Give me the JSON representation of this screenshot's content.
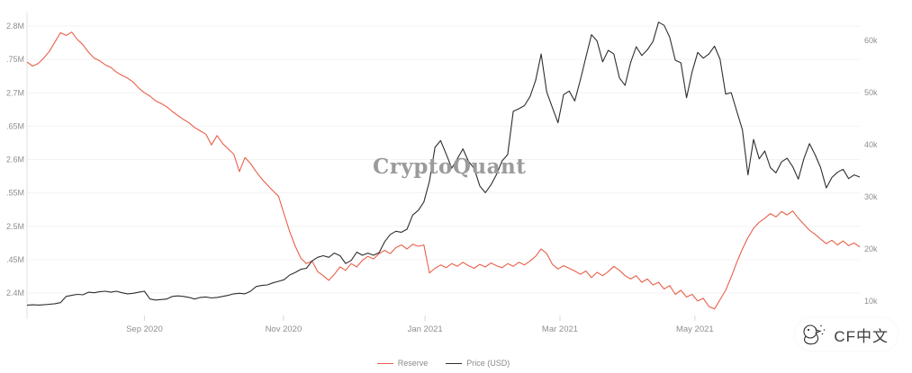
{
  "watermark": "CryptoQuant",
  "badge": {
    "text": "CF中文",
    "icon": "bird-sketch-icon"
  },
  "chart_data": {
    "type": "line",
    "title": "",
    "grid": "horizontal-light",
    "legend_position": "bottom-center",
    "x_axis": {
      "tick_labels": [
        "Sep 2020",
        "Nov 2020",
        "Jan 2021",
        "Mar 2021",
        "May 2021"
      ],
      "fractions": [
        0.141,
        0.308,
        0.478,
        0.64,
        0.802
      ]
    },
    "left_axis": {
      "tick_labels": [
        "2.8M",
        ".75M",
        "2.7M",
        ".65M",
        "2.6M",
        ".55M",
        "2.5M",
        ".45M",
        "2.4M"
      ],
      "values": [
        2.8,
        2.75,
        2.7,
        2.65,
        2.6,
        2.55,
        2.5,
        2.45,
        2.4
      ]
    },
    "right_axis": {
      "tick_labels": [
        "60k",
        "50k",
        "40k",
        "30k",
        "20k",
        "10k"
      ],
      "values": [
        60,
        50,
        40,
        30,
        20,
        10
      ]
    },
    "series": [
      {
        "name": "Reserve",
        "axis": "left",
        "unit": "M BTC",
        "color": "#e8604a",
        "values": [
          2.746,
          2.74,
          2.744,
          2.752,
          2.762,
          2.776,
          2.79,
          2.786,
          2.791,
          2.78,
          2.772,
          2.761,
          2.752,
          2.748,
          2.742,
          2.738,
          2.731,
          2.726,
          2.722,
          2.716,
          2.707,
          2.7,
          2.695,
          2.688,
          2.684,
          2.679,
          2.672,
          2.666,
          2.66,
          2.655,
          2.648,
          2.643,
          2.638,
          2.622,
          2.636,
          2.624,
          2.616,
          2.608,
          2.582,
          2.603,
          2.594,
          2.582,
          2.571,
          2.562,
          2.553,
          2.545,
          2.518,
          2.492,
          2.47,
          2.452,
          2.444,
          2.448,
          2.432,
          2.426,
          2.419,
          2.428,
          2.439,
          2.434,
          2.444,
          2.439,
          2.449,
          2.455,
          2.451,
          2.459,
          2.464,
          2.459,
          2.468,
          2.472,
          2.466,
          2.473,
          2.47,
          2.472,
          2.43,
          2.437,
          2.442,
          2.438,
          2.444,
          2.44,
          2.446,
          2.441,
          2.437,
          2.443,
          2.439,
          2.445,
          2.441,
          2.438,
          2.444,
          2.44,
          2.446,
          2.442,
          2.448,
          2.455,
          2.466,
          2.459,
          2.443,
          2.436,
          2.441,
          2.437,
          2.433,
          2.428,
          2.433,
          2.423,
          2.431,
          2.426,
          2.432,
          2.44,
          2.434,
          2.426,
          2.421,
          2.426,
          2.416,
          2.421,
          2.412,
          2.416,
          2.406,
          2.411,
          2.398,
          2.404,
          2.394,
          2.398,
          2.388,
          2.392,
          2.38,
          2.376,
          2.39,
          2.404,
          2.424,
          2.446,
          2.466,
          2.483,
          2.497,
          2.506,
          2.512,
          2.519,
          2.514,
          2.522,
          2.517,
          2.523,
          2.512,
          2.503,
          2.494,
          2.488,
          2.481,
          2.474,
          2.479,
          2.472,
          2.478,
          2.471,
          2.475,
          2.469
        ]
      },
      {
        "name": "Price (USD)",
        "axis": "right",
        "unit": "k USD",
        "color": "#2e2e2e",
        "values": [
          9.2,
          9.3,
          9.25,
          9.3,
          9.4,
          9.5,
          9.7,
          10.9,
          11.1,
          11.3,
          11.2,
          11.7,
          11.6,
          11.8,
          11.9,
          11.7,
          11.9,
          11.6,
          11.4,
          11.5,
          11.7,
          11.9,
          10.4,
          10.2,
          10.3,
          10.4,
          10.9,
          11.0,
          10.9,
          10.7,
          10.4,
          10.7,
          10.8,
          10.6,
          10.7,
          10.9,
          11.1,
          11.4,
          11.5,
          11.4,
          11.9,
          12.8,
          13.0,
          13.1,
          13.5,
          13.8,
          14.1,
          15.0,
          15.5,
          16.1,
          16.3,
          17.7,
          18.4,
          18.7,
          18.4,
          19.2,
          18.7,
          17.2,
          17.8,
          19.4,
          18.8,
          19.2,
          18.8,
          19.3,
          21.4,
          22.8,
          23.4,
          23.2,
          23.8,
          26.5,
          27.4,
          29.0,
          33.0,
          39.5,
          40.8,
          38.2,
          35.5,
          37.3,
          39.2,
          36.8,
          35.5,
          32.1,
          30.8,
          32.3,
          34.3,
          36.9,
          38.1,
          46.4,
          46.9,
          47.5,
          49.2,
          52.3,
          57.4,
          50.1,
          47.1,
          44.2,
          49.6,
          50.3,
          48.4,
          52.4,
          56.8,
          61.1,
          59.9,
          55.9,
          58.1,
          57.4,
          52.8,
          51.4,
          55.8,
          58.8,
          57.1,
          58.2,
          59.8,
          63.5,
          62.9,
          60.6,
          56.2,
          55.7,
          49.0,
          54.0,
          57.7,
          56.6,
          57.4,
          58.9,
          56.4,
          49.7,
          50.0,
          46.4,
          42.9,
          34.2,
          41.0,
          37.3,
          38.8,
          35.6,
          34.6,
          36.7,
          37.4,
          35.8,
          33.4,
          37.3,
          40.2,
          38.1,
          35.6,
          31.7,
          33.7,
          34.7,
          35.3,
          33.5,
          34.2,
          33.8
        ]
      }
    ]
  }
}
